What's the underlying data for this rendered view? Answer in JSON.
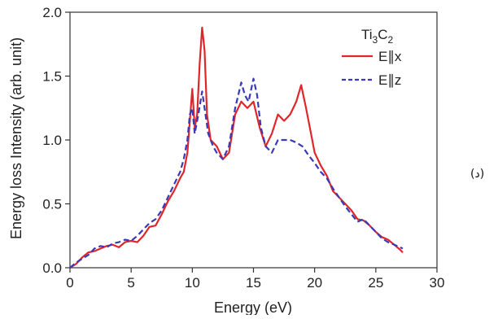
{
  "panel_label": "(د)",
  "chart_data": {
    "type": "line",
    "xlabel": "Energy (eV)",
    "ylabel": "Energy loss Intensity (arb. unit)",
    "xlim": [
      0,
      30
    ],
    "ylim": [
      0,
      2.0
    ],
    "xticks": [
      "0",
      "5",
      "10",
      "15",
      "20",
      "25",
      "30"
    ],
    "yticks": [
      "0.0",
      "0.5",
      "1.0",
      "1.5",
      "2.0"
    ],
    "legend": {
      "title_base": "Ti",
      "title_sub1": "3",
      "title_mid": "C",
      "title_sub2": "2",
      "placement": "top-right"
    },
    "series": [
      {
        "name": "E∥x",
        "color": "#e0262b",
        "dash": "solid",
        "points": [
          [
            0,
            0
          ],
          [
            0.5,
            0.03
          ],
          [
            1,
            0.08
          ],
          [
            1.5,
            0.12
          ],
          [
            2,
            0.13
          ],
          [
            2.5,
            0.15
          ],
          [
            3,
            0.17
          ],
          [
            3.5,
            0.18
          ],
          [
            4,
            0.16
          ],
          [
            4.5,
            0.2
          ],
          [
            5,
            0.21
          ],
          [
            5.5,
            0.2
          ],
          [
            6,
            0.25
          ],
          [
            6.5,
            0.32
          ],
          [
            7,
            0.33
          ],
          [
            7.5,
            0.42
          ],
          [
            8,
            0.52
          ],
          [
            8.5,
            0.6
          ],
          [
            9,
            0.7
          ],
          [
            9.3,
            0.75
          ],
          [
            9.6,
            0.9
          ],
          [
            9.8,
            1.15
          ],
          [
            10,
            1.4
          ],
          [
            10.2,
            1.1
          ],
          [
            10.4,
            1.2
          ],
          [
            10.6,
            1.6
          ],
          [
            10.8,
            1.88
          ],
          [
            11,
            1.7
          ],
          [
            11.2,
            1.2
          ],
          [
            11.5,
            1.0
          ],
          [
            12,
            0.95
          ],
          [
            12.5,
            0.85
          ],
          [
            13,
            0.9
          ],
          [
            13.5,
            1.2
          ],
          [
            14,
            1.3
          ],
          [
            14.5,
            1.25
          ],
          [
            15,
            1.3
          ],
          [
            15.5,
            1.1
          ],
          [
            16,
            0.95
          ],
          [
            16.5,
            1.05
          ],
          [
            17,
            1.2
          ],
          [
            17.5,
            1.15
          ],
          [
            18,
            1.2
          ],
          [
            18.5,
            1.3
          ],
          [
            18.9,
            1.43
          ],
          [
            19.3,
            1.25
          ],
          [
            19.7,
            1.05
          ],
          [
            20,
            0.9
          ],
          [
            20.5,
            0.8
          ],
          [
            21,
            0.72
          ],
          [
            21.5,
            0.6
          ],
          [
            22,
            0.55
          ],
          [
            22.5,
            0.5
          ],
          [
            23,
            0.45
          ],
          [
            23.5,
            0.38
          ],
          [
            24,
            0.37
          ],
          [
            24.5,
            0.33
          ],
          [
            25,
            0.28
          ],
          [
            25.5,
            0.24
          ],
          [
            26,
            0.22
          ],
          [
            26.5,
            0.18
          ],
          [
            27,
            0.14
          ],
          [
            27.2,
            0.12
          ]
        ]
      },
      {
        "name": "E∥z",
        "color": "#3a3ab8",
        "dash": "dashed",
        "points": [
          [
            0,
            0
          ],
          [
            0.5,
            0.04
          ],
          [
            1,
            0.07
          ],
          [
            1.5,
            0.1
          ],
          [
            2,
            0.15
          ],
          [
            2.5,
            0.17
          ],
          [
            3,
            0.16
          ],
          [
            3.5,
            0.19
          ],
          [
            4,
            0.2
          ],
          [
            4.5,
            0.22
          ],
          [
            5,
            0.21
          ],
          [
            5.5,
            0.25
          ],
          [
            6,
            0.3
          ],
          [
            6.5,
            0.35
          ],
          [
            7,
            0.38
          ],
          [
            7.5,
            0.45
          ],
          [
            8,
            0.55
          ],
          [
            8.5,
            0.65
          ],
          [
            9,
            0.75
          ],
          [
            9.3,
            0.85
          ],
          [
            9.6,
            1.0
          ],
          [
            9.8,
            1.2
          ],
          [
            10,
            1.25
          ],
          [
            10.2,
            1.05
          ],
          [
            10.5,
            1.2
          ],
          [
            10.8,
            1.38
          ],
          [
            11,
            1.25
          ],
          [
            11.3,
            1.05
          ],
          [
            11.7,
            0.95
          ],
          [
            12,
            0.9
          ],
          [
            12.5,
            0.85
          ],
          [
            13,
            0.95
          ],
          [
            13.5,
            1.25
          ],
          [
            14,
            1.45
          ],
          [
            14.3,
            1.35
          ],
          [
            14.6,
            1.3
          ],
          [
            15,
            1.48
          ],
          [
            15.3,
            1.35
          ],
          [
            15.6,
            1.1
          ],
          [
            16,
            0.95
          ],
          [
            16.5,
            0.9
          ],
          [
            17,
            1.0
          ],
          [
            17.5,
            1.0
          ],
          [
            18,
            1.0
          ],
          [
            18.5,
            0.98
          ],
          [
            19,
            0.95
          ],
          [
            19.5,
            0.88
          ],
          [
            20,
            0.82
          ],
          [
            20.5,
            0.75
          ],
          [
            21,
            0.7
          ],
          [
            21.5,
            0.62
          ],
          [
            22,
            0.55
          ],
          [
            22.5,
            0.48
          ],
          [
            23,
            0.42
          ],
          [
            23.5,
            0.36
          ],
          [
            24,
            0.38
          ],
          [
            24.5,
            0.33
          ],
          [
            25,
            0.28
          ],
          [
            25.5,
            0.23
          ],
          [
            26,
            0.2
          ],
          [
            26.5,
            0.18
          ],
          [
            27,
            0.16
          ],
          [
            27.2,
            0.15
          ]
        ]
      }
    ]
  }
}
